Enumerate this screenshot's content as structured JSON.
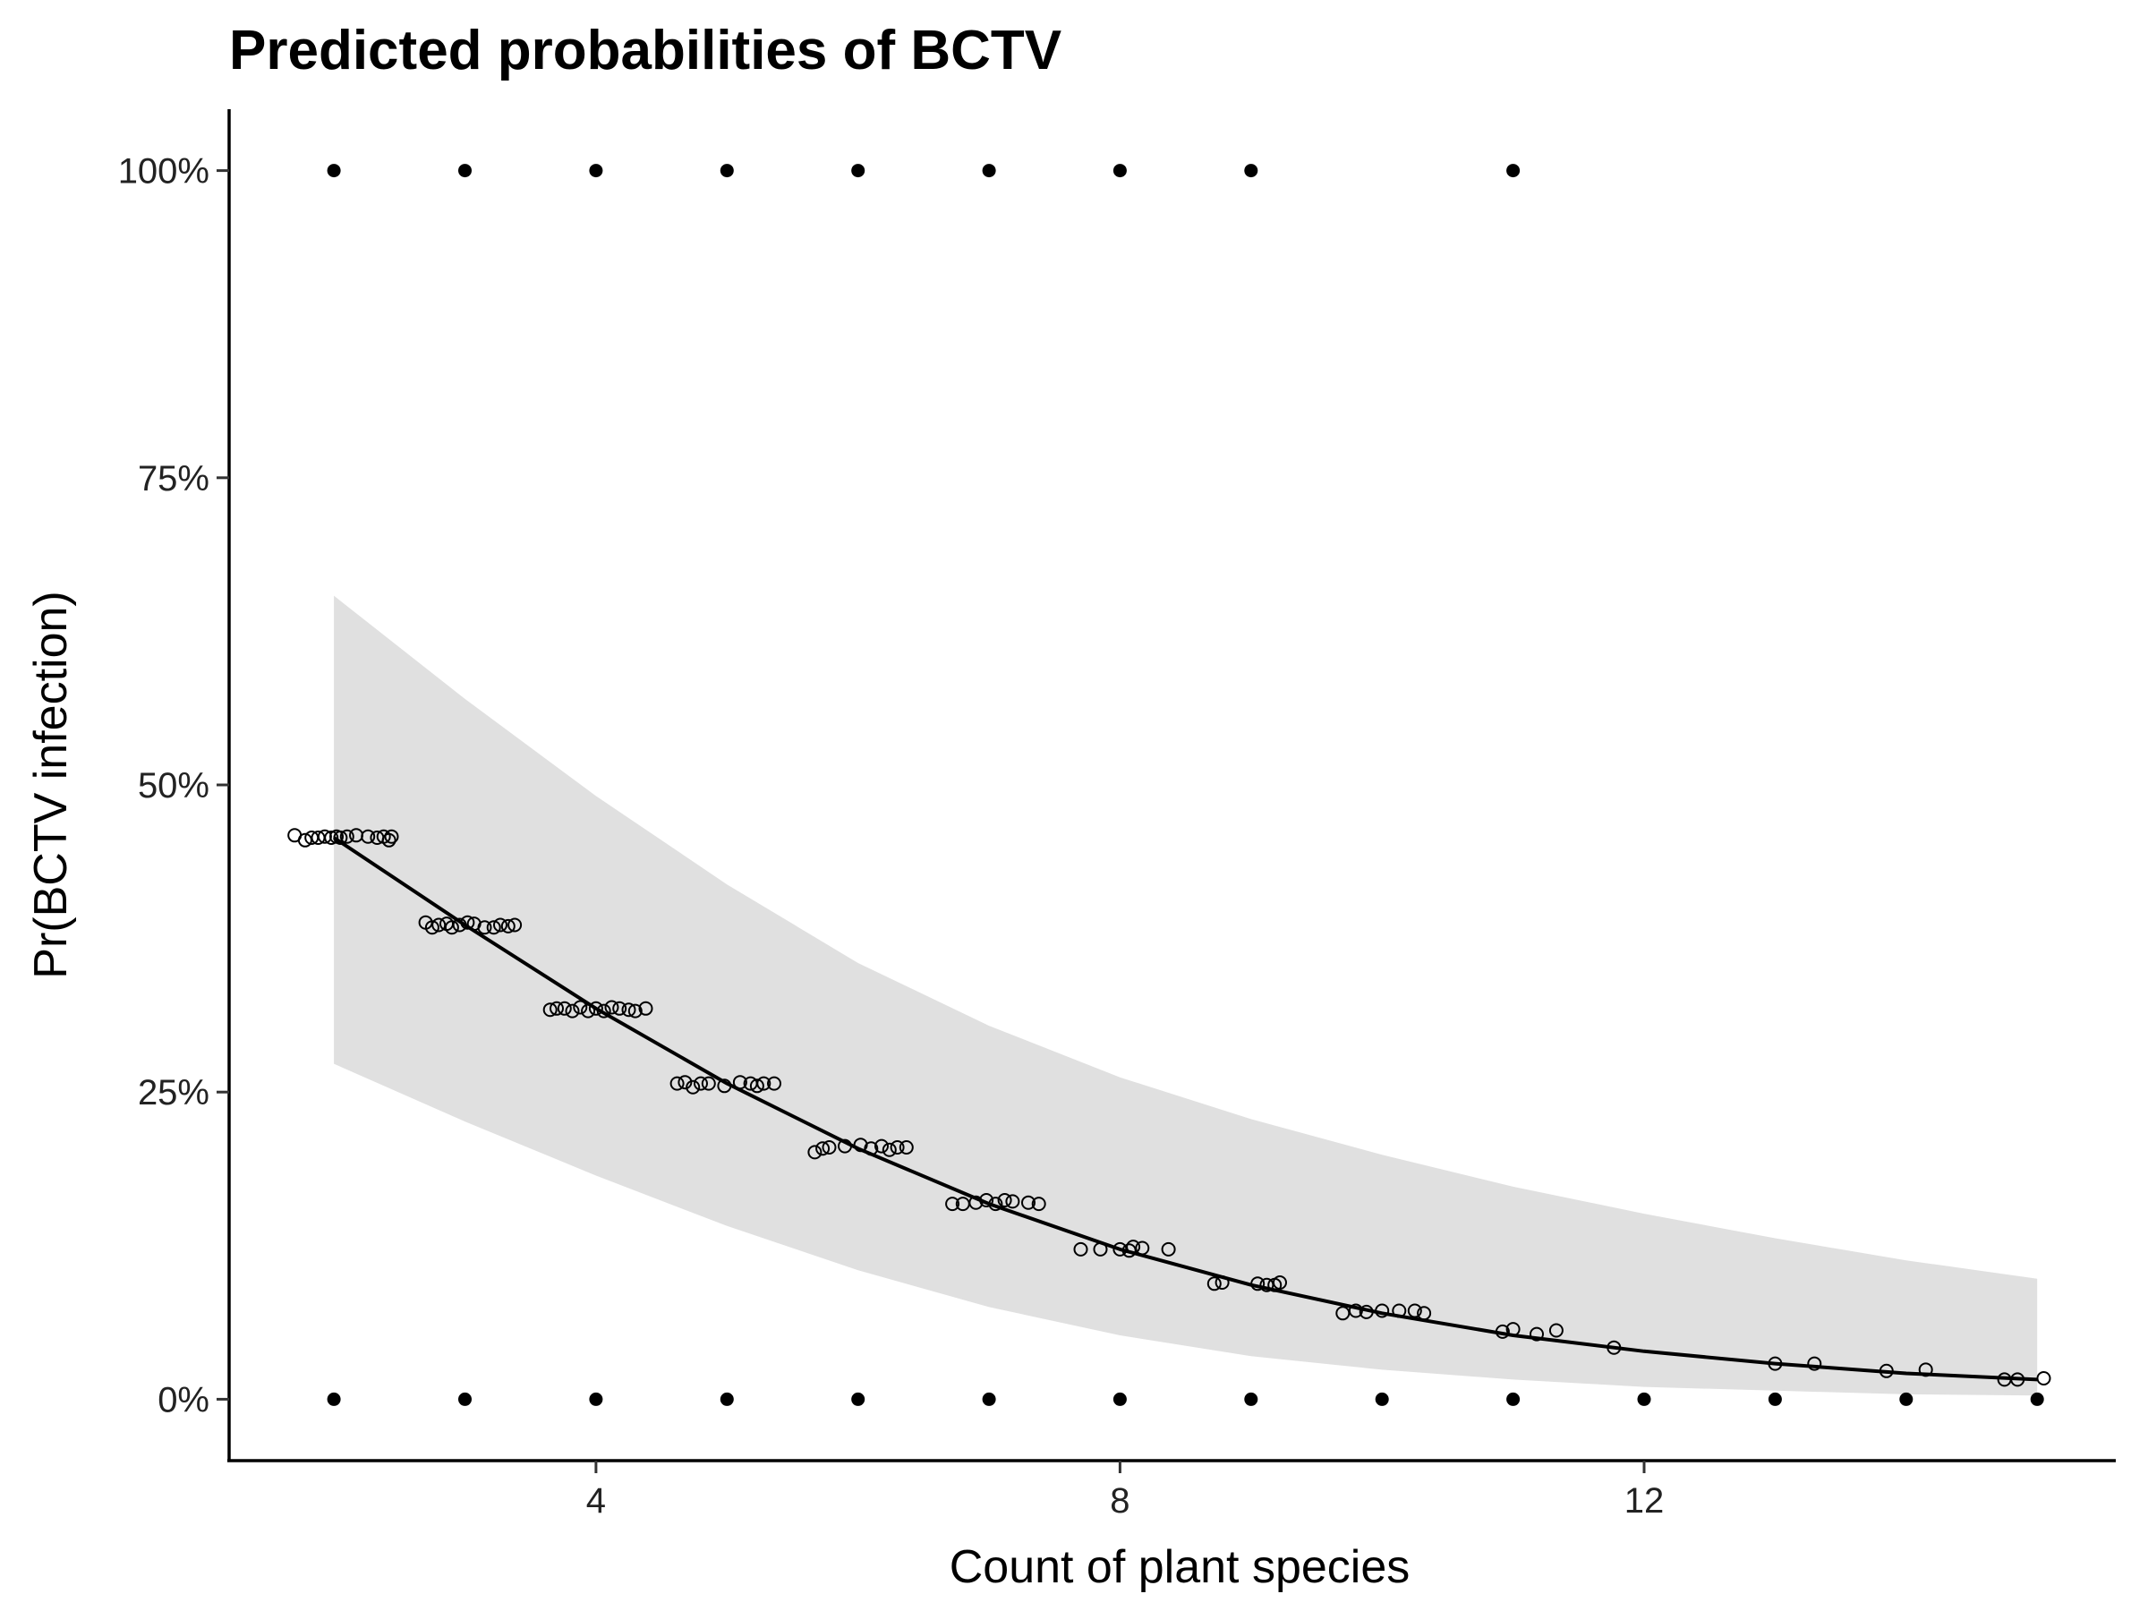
{
  "chart_data": {
    "type": "scatter",
    "title": "Predicted probabilities of BCTV",
    "xlabel": "Count of plant species",
    "ylabel": "Pr(BCTV infection)",
    "xlim": [
      1.2,
      15.6
    ],
    "ylim": [
      -0.05,
      1.05
    ],
    "x_ticks": [
      4,
      8,
      12
    ],
    "x_tick_labels": [
      "4",
      "8",
      "12"
    ],
    "y_ticks": [
      0,
      0.25,
      0.5,
      0.75,
      1.0
    ],
    "y_tick_labels": [
      "0%",
      "25%",
      "50%",
      "75%",
      "100%"
    ],
    "grid": false,
    "legend": "none",
    "colors": {
      "line": "#000000",
      "ribbon": "#e0e0e0",
      "points": "#000000",
      "axis": "#000000"
    },
    "fit": {
      "x": [
        2,
        3,
        4,
        5,
        6,
        7,
        8,
        9,
        10,
        11,
        12,
        13,
        14,
        15
      ],
      "y": [
        0.457,
        0.386,
        0.318,
        0.257,
        0.204,
        0.159,
        0.122,
        0.093,
        0.07,
        0.052,
        0.039,
        0.029,
        0.021,
        0.016
      ]
    },
    "ci": {
      "x": [
        2,
        3,
        4,
        5,
        6,
        7,
        8,
        9,
        10,
        11,
        12,
        13,
        14,
        15
      ],
      "lower": [
        0.273,
        0.226,
        0.182,
        0.141,
        0.105,
        0.075,
        0.052,
        0.035,
        0.024,
        0.016,
        0.01,
        0.007,
        0.004,
        0.003
      ],
      "upper": [
        0.654,
        0.57,
        0.491,
        0.419,
        0.355,
        0.304,
        0.262,
        0.228,
        0.199,
        0.173,
        0.151,
        0.131,
        0.113,
        0.098
      ]
    },
    "observed": {
      "infected_x": [
        2,
        3,
        4,
        5,
        6,
        7,
        8,
        9,
        11
      ],
      "uninfected_x": [
        2,
        3,
        4,
        5,
        6,
        7,
        8,
        9,
        10,
        11,
        12,
        13,
        14,
        15
      ]
    },
    "residual_points": [
      {
        "x": 1.7,
        "y": 0.459
      },
      {
        "x": 1.78,
        "y": 0.455
      },
      {
        "x": 1.83,
        "y": 0.457
      },
      {
        "x": 1.88,
        "y": 0.457
      },
      {
        "x": 1.93,
        "y": 0.458
      },
      {
        "x": 1.98,
        "y": 0.457
      },
      {
        "x": 2.02,
        "y": 0.458
      },
      {
        "x": 2.05,
        "y": 0.457
      },
      {
        "x": 2.1,
        "y": 0.458
      },
      {
        "x": 2.17,
        "y": 0.459
      },
      {
        "x": 2.26,
        "y": 0.458
      },
      {
        "x": 2.33,
        "y": 0.457
      },
      {
        "x": 2.38,
        "y": 0.458
      },
      {
        "x": 2.42,
        "y": 0.455
      },
      {
        "x": 2.44,
        "y": 0.458
      },
      {
        "x": 2.7,
        "y": 0.388
      },
      {
        "x": 2.75,
        "y": 0.384
      },
      {
        "x": 2.8,
        "y": 0.386
      },
      {
        "x": 2.86,
        "y": 0.387
      },
      {
        "x": 2.9,
        "y": 0.384
      },
      {
        "x": 2.96,
        "y": 0.386
      },
      {
        "x": 3.02,
        "y": 0.388
      },
      {
        "x": 3.07,
        "y": 0.387
      },
      {
        "x": 3.15,
        "y": 0.384
      },
      {
        "x": 3.22,
        "y": 0.384
      },
      {
        "x": 3.27,
        "y": 0.386
      },
      {
        "x": 3.33,
        "y": 0.385
      },
      {
        "x": 3.38,
        "y": 0.386
      },
      {
        "x": 3.65,
        "y": 0.317
      },
      {
        "x": 3.7,
        "y": 0.318
      },
      {
        "x": 3.76,
        "y": 0.318
      },
      {
        "x": 3.82,
        "y": 0.316
      },
      {
        "x": 3.88,
        "y": 0.319
      },
      {
        "x": 3.94,
        "y": 0.316
      },
      {
        "x": 4.0,
        "y": 0.318
      },
      {
        "x": 4.06,
        "y": 0.316
      },
      {
        "x": 4.12,
        "y": 0.319
      },
      {
        "x": 4.18,
        "y": 0.318
      },
      {
        "x": 4.25,
        "y": 0.317
      },
      {
        "x": 4.3,
        "y": 0.316
      },
      {
        "x": 4.38,
        "y": 0.318
      },
      {
        "x": 4.62,
        "y": 0.257
      },
      {
        "x": 4.68,
        "y": 0.258
      },
      {
        "x": 4.74,
        "y": 0.254
      },
      {
        "x": 4.8,
        "y": 0.257
      },
      {
        "x": 4.86,
        "y": 0.257
      },
      {
        "x": 4.98,
        "y": 0.255
      },
      {
        "x": 5.1,
        "y": 0.258
      },
      {
        "x": 5.18,
        "y": 0.257
      },
      {
        "x": 5.23,
        "y": 0.255
      },
      {
        "x": 5.28,
        "y": 0.257
      },
      {
        "x": 5.36,
        "y": 0.257
      },
      {
        "x": 5.67,
        "y": 0.201
      },
      {
        "x": 5.73,
        "y": 0.204
      },
      {
        "x": 5.78,
        "y": 0.205
      },
      {
        "x": 5.9,
        "y": 0.206
      },
      {
        "x": 6.02,
        "y": 0.207
      },
      {
        "x": 6.1,
        "y": 0.204
      },
      {
        "x": 6.18,
        "y": 0.206
      },
      {
        "x": 6.24,
        "y": 0.203
      },
      {
        "x": 6.3,
        "y": 0.205
      },
      {
        "x": 6.37,
        "y": 0.205
      },
      {
        "x": 6.72,
        "y": 0.159
      },
      {
        "x": 6.8,
        "y": 0.159
      },
      {
        "x": 6.9,
        "y": 0.16
      },
      {
        "x": 6.98,
        "y": 0.162
      },
      {
        "x": 7.05,
        "y": 0.159
      },
      {
        "x": 7.12,
        "y": 0.162
      },
      {
        "x": 7.18,
        "y": 0.161
      },
      {
        "x": 7.3,
        "y": 0.16
      },
      {
        "x": 7.38,
        "y": 0.159
      },
      {
        "x": 7.7,
        "y": 0.122
      },
      {
        "x": 7.85,
        "y": 0.122
      },
      {
        "x": 8.0,
        "y": 0.122
      },
      {
        "x": 8.07,
        "y": 0.121
      },
      {
        "x": 8.1,
        "y": 0.124
      },
      {
        "x": 8.17,
        "y": 0.123
      },
      {
        "x": 8.37,
        "y": 0.122
      },
      {
        "x": 8.72,
        "y": 0.094
      },
      {
        "x": 8.78,
        "y": 0.095
      },
      {
        "x": 9.05,
        "y": 0.094
      },
      {
        "x": 9.12,
        "y": 0.093
      },
      {
        "x": 9.18,
        "y": 0.093
      },
      {
        "x": 9.22,
        "y": 0.095
      },
      {
        "x": 9.7,
        "y": 0.07
      },
      {
        "x": 9.8,
        "y": 0.072
      },
      {
        "x": 9.88,
        "y": 0.071
      },
      {
        "x": 10.0,
        "y": 0.072
      },
      {
        "x": 10.13,
        "y": 0.072
      },
      {
        "x": 10.25,
        "y": 0.072
      },
      {
        "x": 10.32,
        "y": 0.07
      },
      {
        "x": 10.92,
        "y": 0.055
      },
      {
        "x": 11.0,
        "y": 0.057
      },
      {
        "x": 11.18,
        "y": 0.053
      },
      {
        "x": 11.33,
        "y": 0.056
      },
      {
        "x": 11.77,
        "y": 0.042
      },
      {
        "x": 13.0,
        "y": 0.029
      },
      {
        "x": 13.3,
        "y": 0.029
      },
      {
        "x": 13.85,
        "y": 0.023
      },
      {
        "x": 14.15,
        "y": 0.024
      },
      {
        "x": 14.75,
        "y": 0.016
      },
      {
        "x": 14.85,
        "y": 0.016
      },
      {
        "x": 15.05,
        "y": 0.017
      }
    ]
  }
}
